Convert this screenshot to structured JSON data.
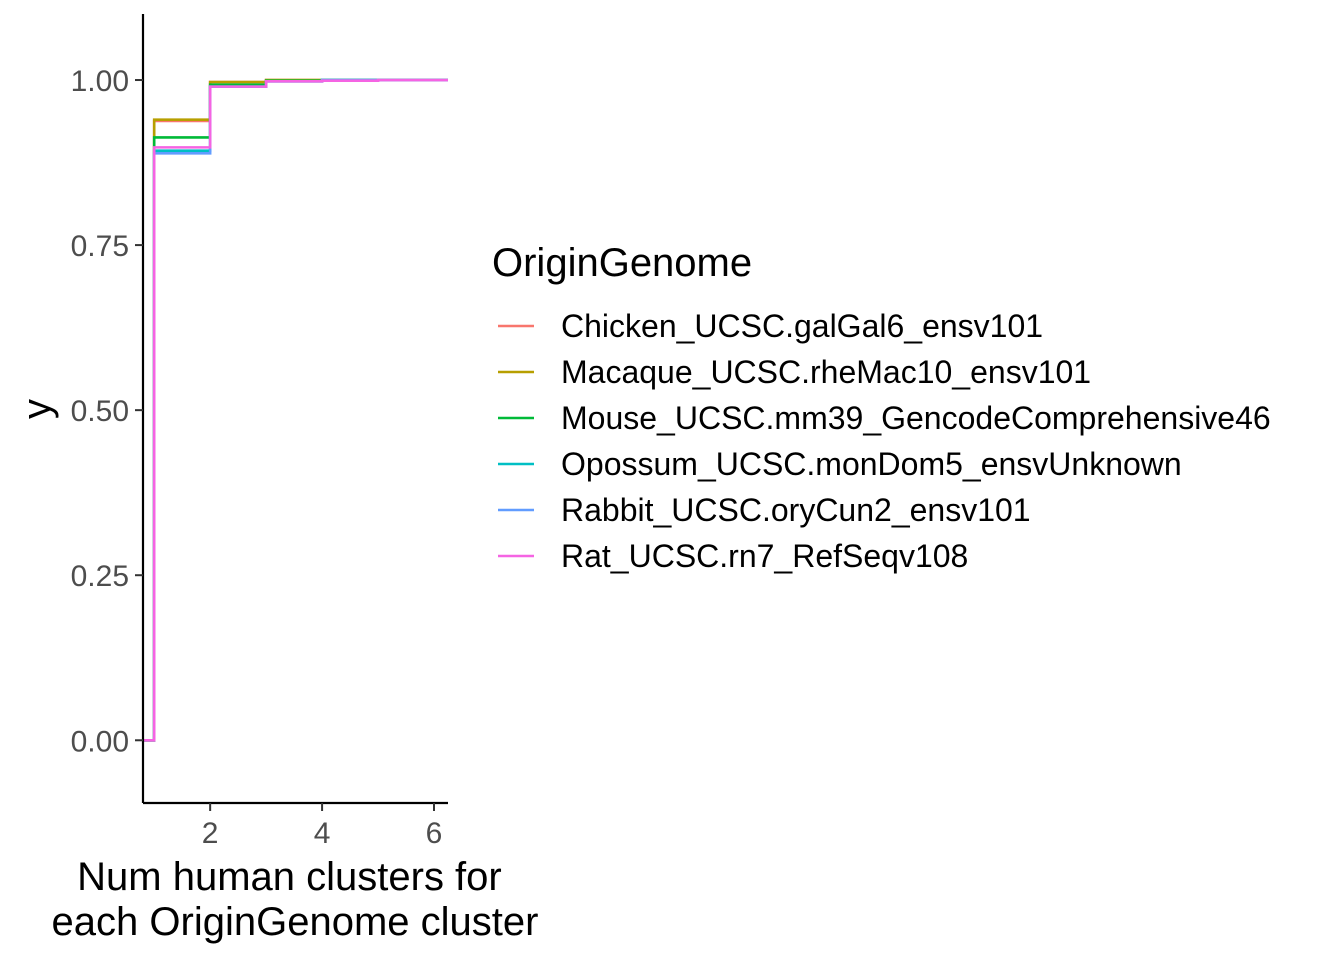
{
  "chart_data": {
    "type": "line",
    "step": true,
    "xlabel": "Num human clusters for each OriginGenome cluster",
    "xlabel_lines": [
      "Num human clusters for",
      "each OriginGenome cluster"
    ],
    "ylabel": "y",
    "xlim": [
      0.8,
      6.25
    ],
    "ylim": [
      -0.095,
      1.1
    ],
    "x_ticks": [
      2,
      4,
      6
    ],
    "x_tick_labels": [
      "2",
      "4",
      "6"
    ],
    "y_ticks": [
      0,
      0.25,
      0.5,
      0.75,
      1.0
    ],
    "y_tick_labels": [
      "0.00",
      "0.25",
      "0.50",
      "0.75",
      "1.00"
    ],
    "grid": false,
    "legend": {
      "title": "OriginGenome",
      "position": "right"
    },
    "series": [
      {
        "name": "Chicken_UCSC.galGal6_ensv101",
        "color": "#F8766D",
        "x": [
          0.8,
          1,
          2,
          3,
          4,
          5,
          6.25
        ],
        "y": [
          0,
          0.938,
          0.997,
          1.0,
          1.0,
          1.0,
          1.0
        ]
      },
      {
        "name": "Macaque_UCSC.rheMac10_ensv101",
        "color": "#B79F00",
        "x": [
          0.8,
          1,
          2,
          3,
          4,
          5,
          6.25
        ],
        "y": [
          0,
          0.94,
          0.997,
          1.0,
          1.0,
          1.0,
          1.0
        ]
      },
      {
        "name": "Mouse_UCSC.mm39_GencodeComprehensive46",
        "color": "#00BA38",
        "x": [
          0.8,
          1,
          2,
          3,
          4,
          5,
          6.25
        ],
        "y": [
          0,
          0.913,
          0.993,
          0.999,
          1.0,
          1.0,
          1.0
        ]
      },
      {
        "name": "Opossum_UCSC.monDom5_ensvUnknown",
        "color": "#00BFC4",
        "x": [
          0.8,
          1,
          2,
          3,
          4,
          5,
          6.25
        ],
        "y": [
          0,
          0.893,
          0.99,
          0.998,
          1.0,
          1.0,
          1.0
        ]
      },
      {
        "name": "Rabbit_UCSC.oryCun2_ensv101",
        "color": "#619CFF",
        "x": [
          0.8,
          1,
          2,
          3,
          4,
          5,
          6.25
        ],
        "y": [
          0,
          0.889,
          0.99,
          0.998,
          1.0,
          1.0,
          1.0
        ]
      },
      {
        "name": "Rat_UCSC.rn7_RefSeqv108",
        "color": "#F564E3",
        "x": [
          0.8,
          1,
          2,
          3,
          4,
          5,
          6.25
        ],
        "y": [
          0,
          0.898,
          0.99,
          0.998,
          0.999,
          1.0,
          1.0
        ]
      }
    ]
  }
}
